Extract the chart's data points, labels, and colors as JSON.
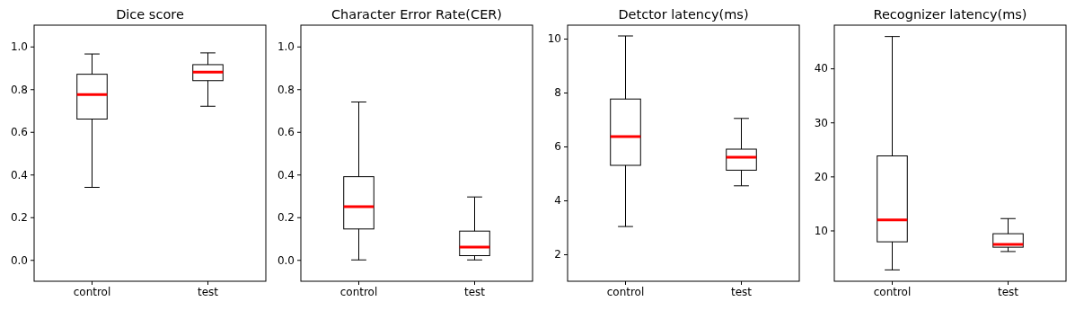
{
  "chart_data": [
    {
      "type": "box",
      "title": "Dice score",
      "categories": [
        "control",
        "test"
      ],
      "ylim": [
        -0.1,
        1.1
      ],
      "yticks": [
        {
          "value": 0,
          "label": "0.0"
        },
        {
          "value": 0.2,
          "label": "0.2"
        },
        {
          "value": 0.4,
          "label": "0.4"
        },
        {
          "value": 0.6,
          "label": "0.6"
        },
        {
          "value": 0.8,
          "label": "0.8"
        },
        {
          "value": 1,
          "label": "1.0"
        }
      ],
      "color": "#000000",
      "boxes": [
        {
          "low": 0.34,
          "q1": 0.66,
          "median": 0.775,
          "q3": 0.87,
          "high": 0.965
        },
        {
          "low": 0.72,
          "q1": 0.84,
          "median": 0.88,
          "q3": 0.915,
          "high": 0.97
        }
      ]
    },
    {
      "type": "box",
      "title": "Character Error Rate(CER)",
      "categories": [
        "control",
        "test"
      ],
      "ylim": [
        -0.1,
        1.1
      ],
      "yticks": [
        {
          "value": 0,
          "label": "0.0"
        },
        {
          "value": 0.2,
          "label": "0.2"
        },
        {
          "value": 0.4,
          "label": "0.4"
        },
        {
          "value": 0.6,
          "label": "0.6"
        },
        {
          "value": 0.8,
          "label": "0.8"
        },
        {
          "value": 1,
          "label": "1.0"
        }
      ],
      "color": "#000000",
      "boxes": [
        {
          "low": 0.0,
          "q1": 0.145,
          "median": 0.25,
          "q3": 0.39,
          "high": 0.74
        },
        {
          "low": 0.0,
          "q1": 0.02,
          "median": 0.06,
          "q3": 0.135,
          "high": 0.295
        }
      ]
    },
    {
      "type": "box",
      "title": "Detctor latency(ms)",
      "categories": [
        "control",
        "test"
      ],
      "ylim": [
        1,
        10.5
      ],
      "yticks": [
        2,
        4,
        6,
        8,
        10
      ],
      "color": "#000000",
      "boxes": [
        {
          "low": 3.03,
          "q1": 5.3,
          "median": 6.37,
          "q3": 7.76,
          "high": 10.1
        },
        {
          "low": 4.54,
          "q1": 5.12,
          "median": 5.6,
          "q3": 5.9,
          "high": 7.04
        }
      ]
    },
    {
      "type": "box",
      "title": "Recognizer latency(ms)",
      "categories": [
        "control",
        "test"
      ],
      "ylim": [
        0.6,
        48
      ],
      "yticks": [
        10,
        20,
        30,
        40
      ],
      "color": "#000000",
      "boxes": [
        {
          "low": 2.7,
          "q1": 7.9,
          "median": 11.95,
          "q3": 23.8,
          "high": 45.9
        },
        {
          "low": 6.1,
          "q1": 6.9,
          "median": 7.4,
          "q3": 9.4,
          "high": 12.2
        }
      ]
    }
  ]
}
